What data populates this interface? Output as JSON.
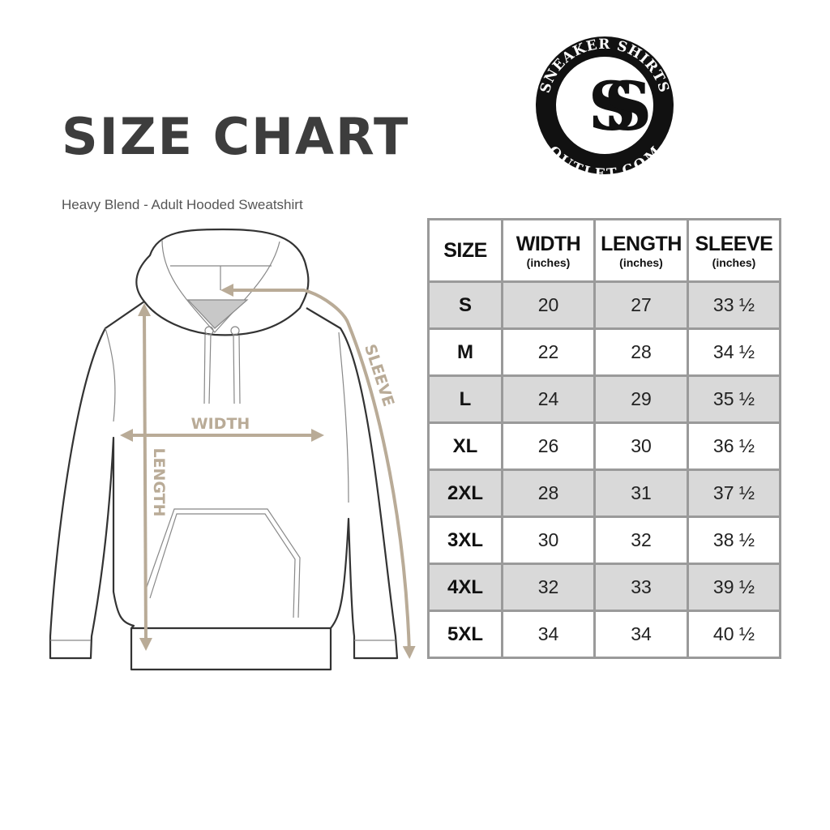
{
  "title": "SIZE CHART",
  "subtitle": "Heavy Blend - Adult Hooded Sweatshirt",
  "logo": {
    "top_text": "SNEAKER SHIRTS",
    "bottom_text": "OUTLET.COM",
    "monogram": "SS"
  },
  "diagram": {
    "width_label": "WIDTH",
    "length_label": "LENGTH",
    "sleeve_label": "SLEEVE",
    "arrow_color": "#b9ab97"
  },
  "table": {
    "headers": [
      {
        "label": "SIZE",
        "unit": ""
      },
      {
        "label": "WIDTH",
        "unit": "(inches)"
      },
      {
        "label": "LENGTH",
        "unit": "(inches)"
      },
      {
        "label": "SLEEVE",
        "unit": "(inches)"
      }
    ],
    "rows": [
      [
        "S",
        "20",
        "27",
        "33 ½"
      ],
      [
        "M",
        "22",
        "28",
        "34 ½"
      ],
      [
        "L",
        "24",
        "29",
        "35 ½"
      ],
      [
        "XL",
        "26",
        "30",
        "36 ½"
      ],
      [
        "2XL",
        "28",
        "31",
        "37 ½"
      ],
      [
        "3XL",
        "30",
        "32",
        "38 ½"
      ],
      [
        "4XL",
        "32",
        "33",
        "39 ½"
      ],
      [
        "5XL",
        "34",
        "34",
        "40 ½"
      ]
    ],
    "stripe_color": "#d9d9d9",
    "border_color": "#9a9a9a"
  }
}
